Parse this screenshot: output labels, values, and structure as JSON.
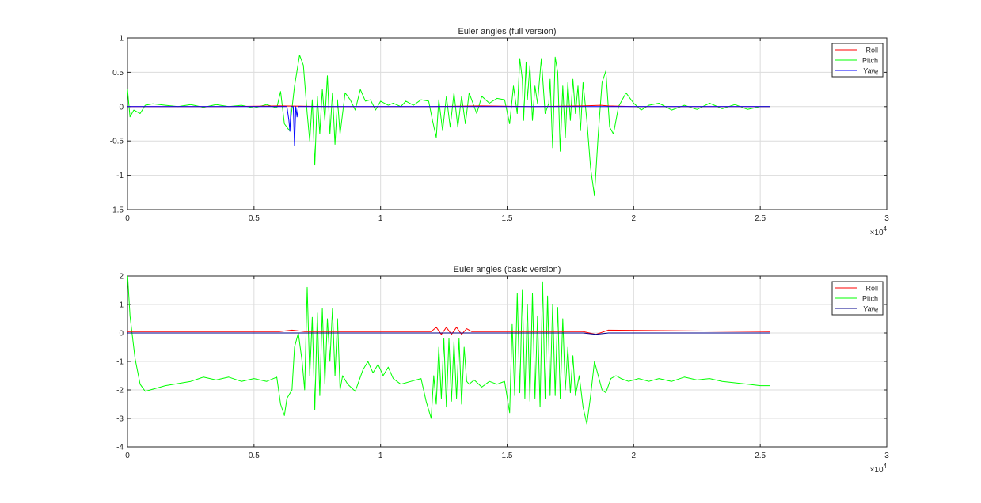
{
  "chart_data": [
    {
      "type": "line",
      "title": "Euler angles (full version)",
      "xlabel": "",
      "ylabel": "",
      "xlim": [
        0,
        30000
      ],
      "ylim": [
        -1.5,
        1
      ],
      "x_ticks": [
        "0",
        "0.5",
        "1",
        "1.5",
        "2",
        "2.5",
        "3"
      ],
      "y_ticks": [
        "1",
        "0.5",
        "0",
        "-0.5",
        "-1",
        "-1.5"
      ],
      "x_exponent": "×10",
      "x_exponent_power": "4",
      "grid": true,
      "legend_position": "top-right",
      "series": [
        {
          "name": "Roll",
          "color": "#ff0000",
          "x": [
            0,
            2000,
            4000,
            6000,
            8000,
            10000,
            12000,
            14000,
            16000,
            18000,
            18700,
            19000,
            20000,
            22000,
            25400
          ],
          "y": [
            0,
            0,
            0,
            0.01,
            0,
            0,
            0,
            0.01,
            0,
            0.01,
            0.02,
            0.01,
            0,
            0,
            0
          ]
        },
        {
          "name": "Pitch",
          "color": "#00ff00",
          "x": [
            0,
            100,
            250,
            500,
            700,
            1000,
            1500,
            2000,
            2500,
            3000,
            3500,
            4000,
            4500,
            5000,
            5500,
            5900,
            6050,
            6200,
            6400,
            6600,
            6800,
            6950,
            7100,
            7200,
            7300,
            7400,
            7500,
            7600,
            7700,
            7800,
            7900,
            8000,
            8100,
            8200,
            8300,
            8400,
            8600,
            8800,
            9000,
            9200,
            9400,
            9600,
            9800,
            10000,
            10300,
            10500,
            10800,
            11000,
            11300,
            11600,
            11900,
            12050,
            12200,
            12300,
            12450,
            12600,
            12750,
            12900,
            13050,
            13200,
            13350,
            13500,
            13650,
            13800,
            14000,
            14300,
            14600,
            14900,
            15100,
            15250,
            15400,
            15500,
            15600,
            15650,
            15750,
            15800,
            15900,
            16000,
            16100,
            16200,
            16350,
            16500,
            16650,
            16700,
            16800,
            16900,
            17000,
            17100,
            17200,
            17300,
            17400,
            17500,
            17600,
            17700,
            17800,
            17900,
            18000,
            18150,
            18300,
            18450,
            18600,
            18750,
            18900,
            19050,
            19200,
            19400,
            19700,
            20000,
            20300,
            20600,
            21000,
            21500,
            22000,
            22500,
            23000,
            23500,
            24000,
            24500,
            25000,
            25400
          ],
          "y": [
            0.25,
            -0.15,
            -0.05,
            -0.1,
            0.02,
            0.04,
            0.02,
            0,
            0.03,
            -0.01,
            0.03,
            0,
            0.02,
            -0.02,
            0.03,
            -0.02,
            0.22,
            -0.25,
            -0.35,
            0.3,
            0.75,
            0.6,
            -0.1,
            -0.5,
            0.1,
            -0.85,
            0.15,
            -0.4,
            0.25,
            -0.2,
            0.45,
            -0.4,
            0.2,
            -0.55,
            0.1,
            -0.4,
            0.2,
            0.1,
            -0.05,
            0.25,
            0.08,
            0.1,
            -0.05,
            0.08,
            0.02,
            0.05,
            0.0,
            0.08,
            0.02,
            0.1,
            0.08,
            -0.2,
            -0.45,
            0.1,
            -0.35,
            0.15,
            -0.3,
            0.2,
            -0.3,
            0.15,
            -0.25,
            0.2,
            0.05,
            -0.1,
            0.15,
            0.05,
            0.12,
            0.1,
            -0.25,
            0.3,
            -0.1,
            0.7,
            0.4,
            -0.2,
            0.65,
            0.1,
            0.6,
            -0.2,
            0.3,
            0.05,
            0.7,
            -0.1,
            0.05,
            0.4,
            -0.6,
            0.72,
            0.5,
            -0.65,
            0.3,
            -0.45,
            0.35,
            -0.2,
            0.4,
            -0.1,
            0.3,
            -0.35,
            0.35,
            -0.2,
            -0.9,
            -1.3,
            -0.4,
            0.35,
            0.52,
            -0.3,
            -0.4,
            0.0,
            0.2,
            0.05,
            -0.05,
            0.02,
            0.05,
            -0.05,
            0.02,
            -0.04,
            0.05,
            -0.03,
            0.03,
            -0.04,
            0.0,
            0.0
          ]
        },
        {
          "name": "Yaw_f",
          "color": "#0000ff",
          "x": [
            0,
            6300,
            6380,
            6420,
            6460,
            6550,
            6600,
            6650,
            6700,
            6750,
            7000,
            25400
          ],
          "y": [
            0,
            0,
            -0.2,
            -0.36,
            0,
            0,
            -0.57,
            0,
            -0.15,
            0,
            0,
            0
          ]
        }
      ]
    },
    {
      "type": "line",
      "title": "Euler angles (basic version)",
      "xlabel": "",
      "ylabel": "",
      "xlim": [
        0,
        30000
      ],
      "ylim": [
        -4,
        2
      ],
      "x_ticks": [
        "0",
        "0.5",
        "1",
        "1.5",
        "2",
        "2.5",
        "3"
      ],
      "y_ticks": [
        "2",
        "1",
        "0",
        "-1",
        "-2",
        "-3",
        "-4"
      ],
      "x_exponent": "×10",
      "x_exponent_power": "4",
      "grid": true,
      "legend_position": "top-right",
      "series": [
        {
          "name": "Roll",
          "color": "#ff0000",
          "x": [
            0,
            6000,
            6500,
            7000,
            10000,
            12000,
            12200,
            12400,
            12600,
            12800,
            13000,
            13200,
            13400,
            13600,
            14000,
            18000,
            18500,
            19000,
            25400
          ],
          "y": [
            0.05,
            0.05,
            0.1,
            0.05,
            0.05,
            0.05,
            0.2,
            -0.05,
            0.2,
            -0.05,
            0.2,
            -0.05,
            0.15,
            0.05,
            0.05,
            0.05,
            -0.05,
            0.1,
            0.05
          ]
        },
        {
          "name": "Pitch",
          "color": "#00ff00",
          "x": [
            0,
            100,
            300,
            500,
            700,
            900,
            1500,
            2500,
            3000,
            3500,
            4000,
            4500,
            5000,
            5500,
            5900,
            6050,
            6200,
            6300,
            6500,
            6600,
            6750,
            6900,
            7000,
            7100,
            7200,
            7300,
            7400,
            7500,
            7600,
            7700,
            7800,
            7900,
            8000,
            8100,
            8200,
            8300,
            8400,
            8500,
            8700,
            9000,
            9300,
            9500,
            9700,
            9900,
            10100,
            10300,
            10500,
            10800,
            11200,
            11600,
            11800,
            12000,
            12100,
            12200,
            12300,
            12400,
            12500,
            12600,
            12700,
            12800,
            12900,
            13000,
            13100,
            13200,
            13300,
            13400,
            13500,
            13700,
            14000,
            14300,
            14600,
            14900,
            15100,
            15200,
            15300,
            15400,
            15500,
            15600,
            15700,
            15800,
            15900,
            16000,
            16100,
            16200,
            16300,
            16400,
            16500,
            16600,
            16700,
            16800,
            16900,
            17000,
            17100,
            17200,
            17300,
            17400,
            17500,
            17600,
            17700,
            17850,
            18000,
            18150,
            18300,
            18450,
            18600,
            18750,
            18900,
            19100,
            19300,
            19500,
            19800,
            20200,
            20600,
            21000,
            21500,
            22000,
            22500,
            23000,
            23500,
            24000,
            24500,
            25000,
            25400
          ],
          "y": [
            2.1,
            0.6,
            -0.9,
            -1.8,
            -2.05,
            -2.0,
            -1.85,
            -1.7,
            -1.55,
            -1.65,
            -1.55,
            -1.7,
            -1.6,
            -1.7,
            -1.55,
            -2.5,
            -2.9,
            -2.3,
            -2.0,
            -0.5,
            0.0,
            -1.0,
            -2.0,
            1.6,
            -1.5,
            0.55,
            -2.7,
            0.7,
            -2.2,
            0.85,
            -1.8,
            0.5,
            -1.0,
            0.85,
            -1.5,
            0.5,
            -2.0,
            -1.5,
            -1.8,
            -2.05,
            -1.3,
            -1.0,
            -1.4,
            -1.1,
            -1.5,
            -1.2,
            -1.6,
            -1.8,
            -1.7,
            -1.6,
            -2.4,
            -3.0,
            -1.5,
            -2.5,
            -0.5,
            -2.3,
            -0.2,
            -2.6,
            -0.2,
            -2.4,
            -0.3,
            -2.3,
            -0.2,
            -2.5,
            -0.5,
            -1.7,
            -1.8,
            -1.65,
            -1.9,
            -1.7,
            -1.8,
            -1.7,
            -2.8,
            0.3,
            -2.2,
            1.4,
            -2.1,
            1.5,
            -2.3,
            1.0,
            -2.4,
            1.4,
            -2.3,
            0.6,
            -2.6,
            1.8,
            -2.3,
            1.3,
            -2.2,
            1.0,
            -2.2,
            0.9,
            -2.3,
            0.5,
            -2.0,
            -0.5,
            -2.1,
            -0.8,
            -2.2,
            -1.5,
            -2.6,
            -3.2,
            -2.2,
            -1.0,
            -1.5,
            -2.0,
            -2.1,
            -1.6,
            -1.5,
            -1.6,
            -1.7,
            -1.6,
            -1.7,
            -1.6,
            -1.7,
            -1.55,
            -1.65,
            -1.6,
            -1.7,
            -1.75,
            -1.8,
            -1.85,
            -1.85
          ]
        },
        {
          "name": "Yaw_f",
          "color": "#00008b",
          "x": [
            0,
            6000,
            8000,
            12000,
            16000,
            18000,
            18500,
            19000,
            25400
          ],
          "y": [
            0,
            0,
            0,
            0,
            0,
            0,
            -0.05,
            0,
            0
          ]
        }
      ]
    }
  ]
}
